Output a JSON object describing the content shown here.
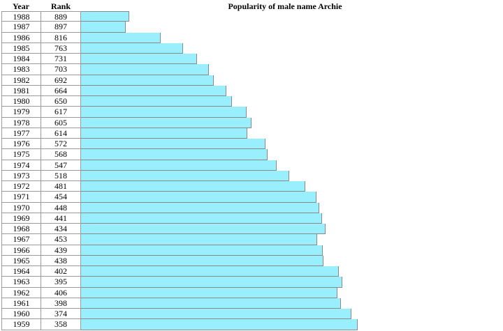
{
  "chart_data": {
    "type": "bar",
    "title": "Popularity of male name Archie",
    "headers": {
      "year": "Year",
      "rank": "Rank"
    },
    "colors": {
      "bar": "#9aefff",
      "border": "#8a8a8a"
    },
    "rank_scale_max": 1000,
    "rows": [
      {
        "year": "1988",
        "rank": 889
      },
      {
        "year": "1987",
        "rank": 897
      },
      {
        "year": "1986",
        "rank": 816
      },
      {
        "year": "1985",
        "rank": 763
      },
      {
        "year": "1984",
        "rank": 731
      },
      {
        "year": "1983",
        "rank": 703
      },
      {
        "year": "1982",
        "rank": 692
      },
      {
        "year": "1981",
        "rank": 664
      },
      {
        "year": "1980",
        "rank": 650
      },
      {
        "year": "1979",
        "rank": 617
      },
      {
        "year": "1978",
        "rank": 605
      },
      {
        "year": "1977",
        "rank": 614
      },
      {
        "year": "1976",
        "rank": 572
      },
      {
        "year": "1975",
        "rank": 568
      },
      {
        "year": "1974",
        "rank": 547
      },
      {
        "year": "1973",
        "rank": 518
      },
      {
        "year": "1972",
        "rank": 481
      },
      {
        "year": "1971",
        "rank": 454
      },
      {
        "year": "1970",
        "rank": 448
      },
      {
        "year": "1969",
        "rank": 441
      },
      {
        "year": "1968",
        "rank": 434
      },
      {
        "year": "1967",
        "rank": 453
      },
      {
        "year": "1966",
        "rank": 439
      },
      {
        "year": "1965",
        "rank": 438
      },
      {
        "year": "1964",
        "rank": 402
      },
      {
        "year": "1963",
        "rank": 395
      },
      {
        "year": "1962",
        "rank": 406
      },
      {
        "year": "1961",
        "rank": 398
      },
      {
        "year": "1960",
        "rank": 374
      },
      {
        "year": "1959",
        "rank": 358
      }
    ]
  }
}
